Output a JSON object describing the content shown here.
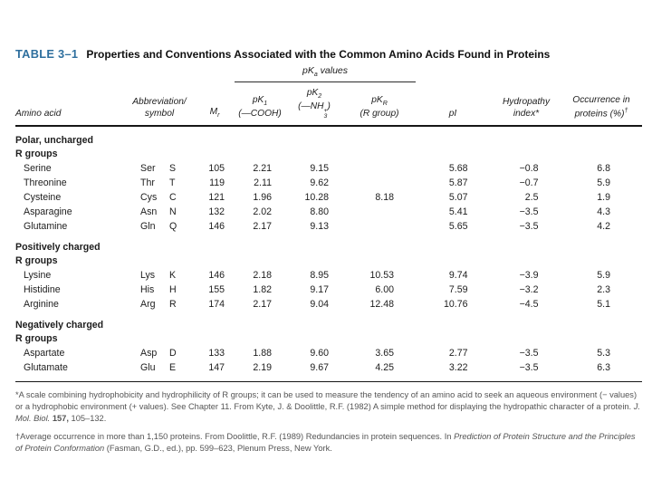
{
  "table": {
    "number": "TABLE 3–1",
    "title": "Properties and Conventions Associated with the Common Amino Acids Found in Proteins",
    "accent_color": "#2e6f9e"
  },
  "pka_header": {
    "base": "pK",
    "sub": "a",
    "rest": " values"
  },
  "columns": {
    "amino_acid": "Amino acid",
    "abbrev_line1": "Abbreviation/",
    "abbrev_line2": "symbol",
    "mr_base": "M",
    "mr_sub": "r",
    "pk1_base": "pK",
    "pk1_sub": "1",
    "pk1_paren": "(—COOH)",
    "pk2_base": "pK",
    "pk2_sub": "2",
    "pk2_open": "(—NH",
    "pk2_sub2": "3",
    "pk2_sup": "+",
    "pk2_close": ")",
    "pkr_base": "pK",
    "pkr_sub": "R",
    "pkr_paren": "(R group)",
    "pi": "pI",
    "hyd_line1": "Hydropathy",
    "hyd_line2": "index*",
    "occ_line1": "Occurrence in",
    "occ_line2": "proteins (%)",
    "occ_sup": "†"
  },
  "sections": [
    {
      "label_line1": "Polar, uncharged",
      "label_line2": "R groups",
      "rows": [
        {
          "name": "Serine",
          "abbr": "Ser",
          "sym": "S",
          "mr": "105",
          "pk1": "2.21",
          "pk2": "9.15",
          "pkr": "",
          "pi": "5.68",
          "hyd": "−0.8",
          "occ": "6.8"
        },
        {
          "name": "Threonine",
          "abbr": "Thr",
          "sym": "T",
          "mr": "119",
          "pk1": "2.11",
          "pk2": "9.62",
          "pkr": "",
          "pi": "5.87",
          "hyd": "−0.7",
          "occ": "5.9"
        },
        {
          "name": "Cysteine",
          "abbr": "Cys",
          "sym": "C",
          "mr": "121",
          "pk1": "1.96",
          "pk2": "10.28",
          "pkr": "8.18",
          "pi": "5.07",
          "hyd": "2.5",
          "occ": "1.9"
        },
        {
          "name": "Asparagine",
          "abbr": "Asn",
          "sym": "N",
          "mr": "132",
          "pk1": "2.02",
          "pk2": "8.80",
          "pkr": "",
          "pi": "5.41",
          "hyd": "−3.5",
          "occ": "4.3"
        },
        {
          "name": "Glutamine",
          "abbr": "Gln",
          "sym": "Q",
          "mr": "146",
          "pk1": "2.17",
          "pk2": "9.13",
          "pkr": "",
          "pi": "5.65",
          "hyd": "−3.5",
          "occ": "4.2"
        }
      ]
    },
    {
      "label_line1": "Positively charged",
      "label_line2": "R groups",
      "rows": [
        {
          "name": "Lysine",
          "abbr": "Lys",
          "sym": "K",
          "mr": "146",
          "pk1": "2.18",
          "pk2": "8.95",
          "pkr": "10.53",
          "pi": "9.74",
          "hyd": "−3.9",
          "occ": "5.9"
        },
        {
          "name": "Histidine",
          "abbr": "His",
          "sym": "H",
          "mr": "155",
          "pk1": "1.82",
          "pk2": "9.17",
          "pkr": "6.00",
          "pi": "7.59",
          "hyd": "−3.2",
          "occ": "2.3"
        },
        {
          "name": "Arginine",
          "abbr": "Arg",
          "sym": "R",
          "mr": "174",
          "pk1": "2.17",
          "pk2": "9.04",
          "pkr": "12.48",
          "pi": "10.76",
          "hyd": "−4.5",
          "occ": "5.1"
        }
      ]
    },
    {
      "label_line1": "Negatively charged",
      "label_line2": "R groups",
      "rows": [
        {
          "name": "Aspartate",
          "abbr": "Asp",
          "sym": "D",
          "mr": "133",
          "pk1": "1.88",
          "pk2": "9.60",
          "pkr": "3.65",
          "pi": "2.77",
          "hyd": "−3.5",
          "occ": "5.3"
        },
        {
          "name": "Glutamate",
          "abbr": "Glu",
          "sym": "E",
          "mr": "147",
          "pk1": "2.19",
          "pk2": "9.67",
          "pkr": "4.25",
          "pi": "3.22",
          "hyd": "−3.5",
          "occ": "6.3"
        }
      ]
    }
  ],
  "footnotes": {
    "f1": {
      "t1": "*A scale combining hydrophobicity and hydrophilicity of R groups; it can be used to measure the tendency of an amino acid to seek an aqueous environment (− values) or a hydrophobic environment (+ values). See Chapter 11. From Kyte, J. & Doolittle, R.F. (1982) A simple method for displaying the hydropathic character of a protein. ",
      "i1": "J. Mol. Biol. ",
      "b1": "157,",
      "t2": " 105–132."
    },
    "f2": {
      "t1": "†Average occurrence in more than 1,150 proteins. From Doolittle, R.F. (1989) Redundancies in protein sequences. In ",
      "i1": "Prediction of Protein Structure and the Principles of Protein Conformation",
      "t2": " (Fasman, G.D., ed.), pp. 599–623, Plenum Press, New York."
    }
  }
}
